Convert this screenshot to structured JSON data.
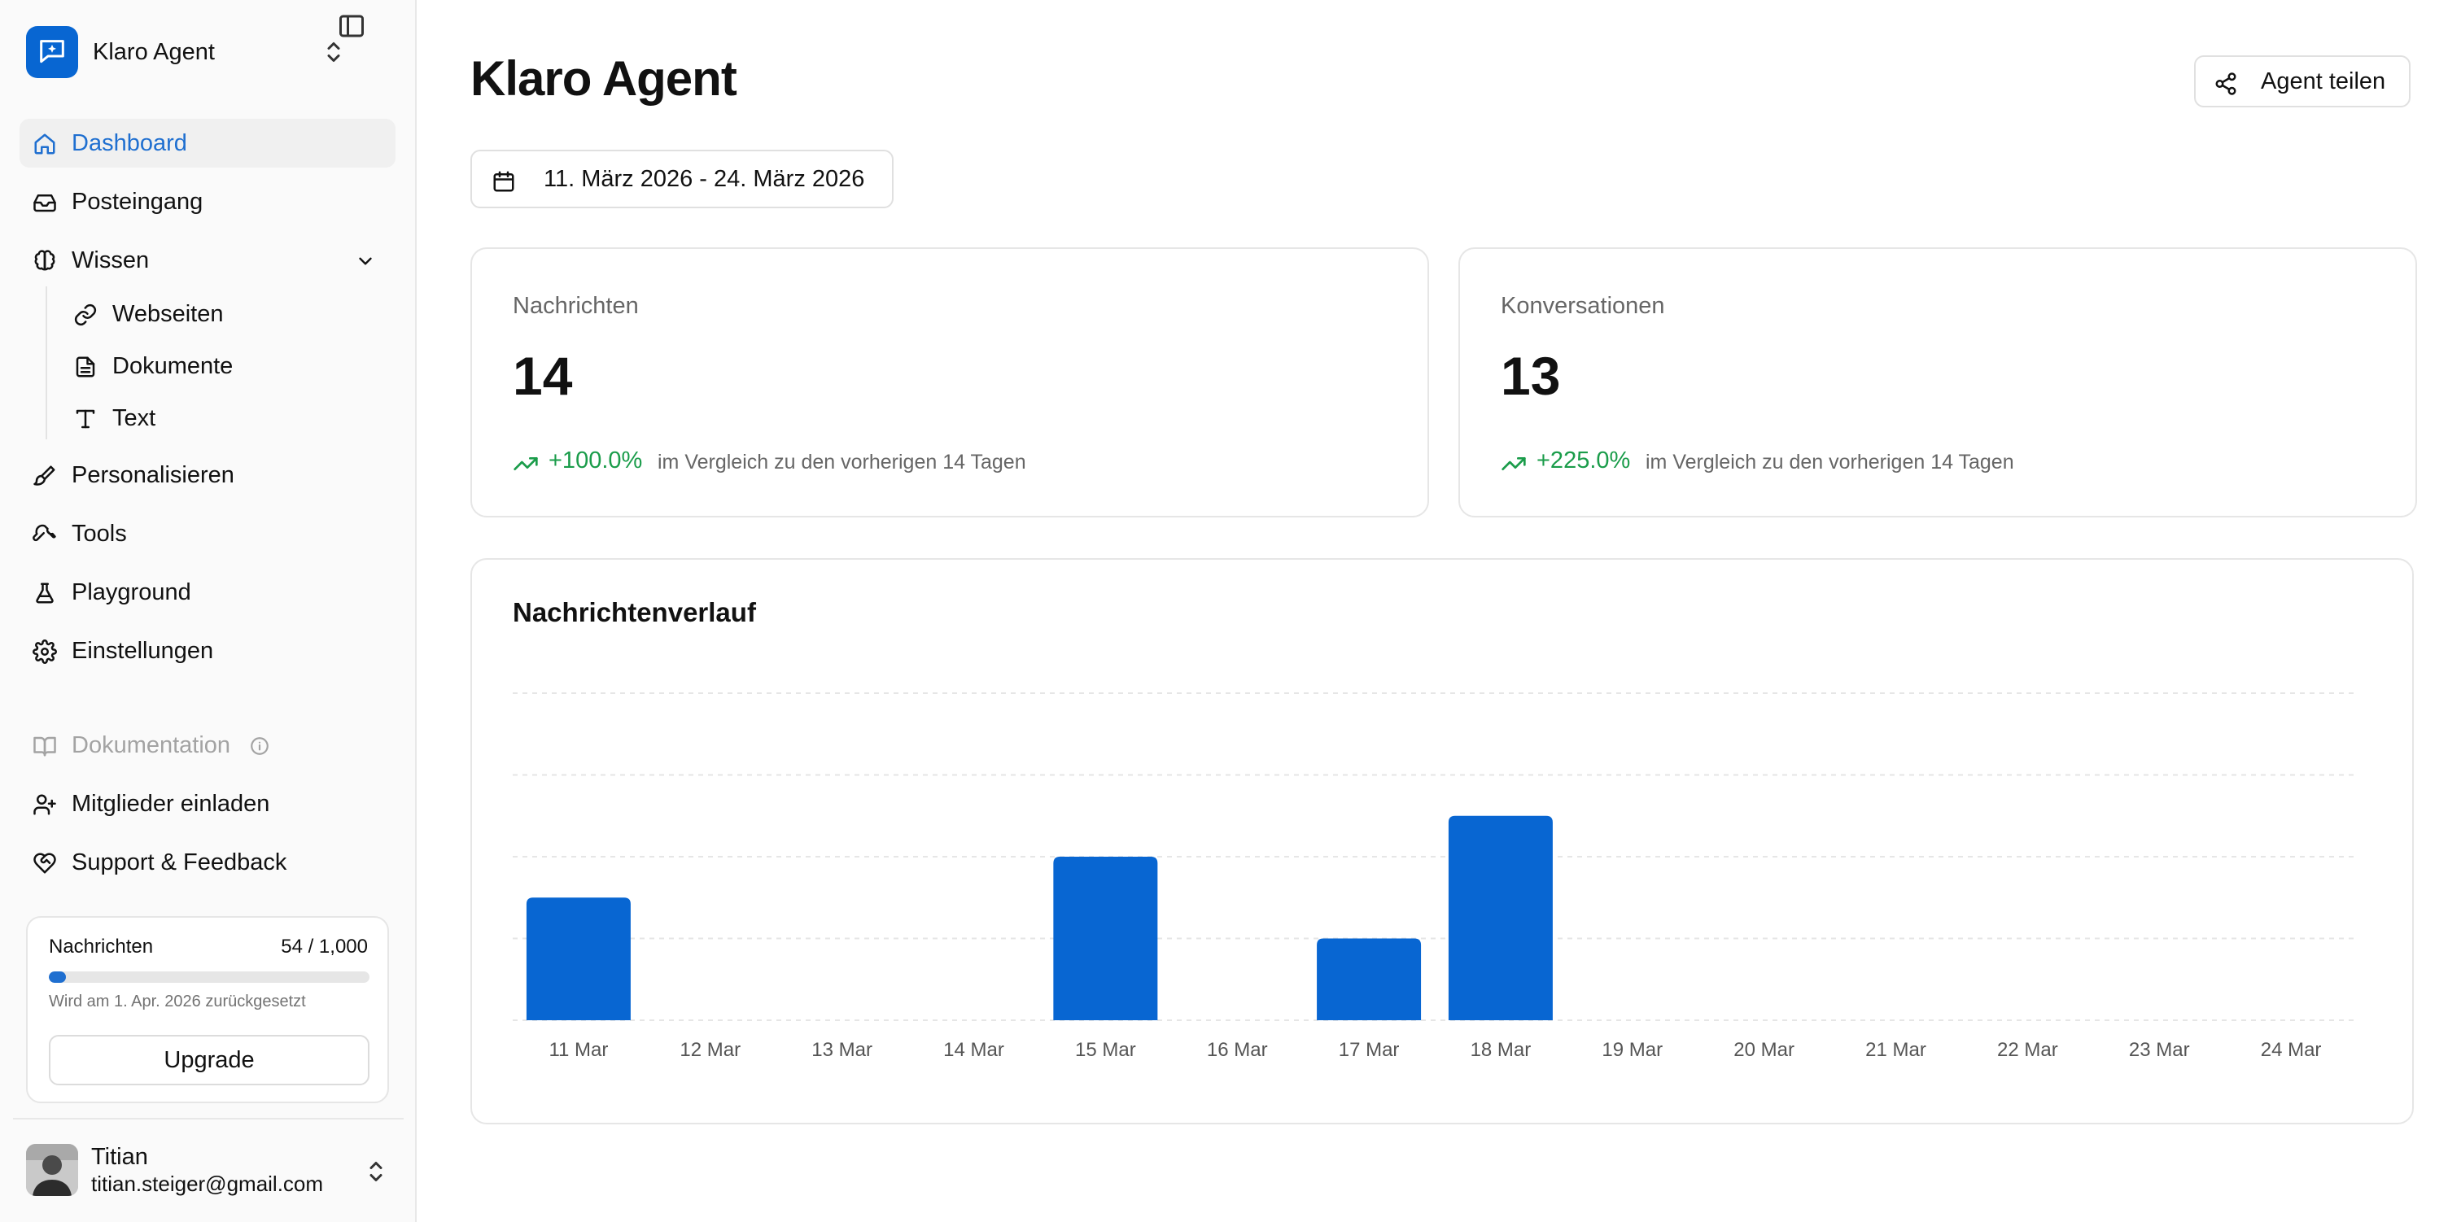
{
  "workspace": {
    "name": "Klaro Agent"
  },
  "sidebar": {
    "nav": [
      {
        "label": "Dashboard",
        "icon": "home-icon",
        "active": true
      },
      {
        "label": "Posteingang",
        "icon": "inbox-icon"
      },
      {
        "label": "Wissen",
        "icon": "brain-icon",
        "expanded": true
      },
      {
        "label": "Personalisieren",
        "icon": "brush-icon"
      },
      {
        "label": "Tools",
        "icon": "wrench-icon"
      },
      {
        "label": "Playground",
        "icon": "flask-icon"
      },
      {
        "label": "Einstellungen",
        "icon": "gear-icon"
      }
    ],
    "wissen_items": [
      {
        "label": "Webseiten",
        "icon": "link-icon"
      },
      {
        "label": "Dokumente",
        "icon": "document-icon"
      },
      {
        "label": "Text",
        "icon": "text-icon"
      }
    ],
    "secondary": [
      {
        "label": "Dokumentation",
        "icon": "book-icon",
        "disabled": true
      },
      {
        "label": "Mitglieder einladen",
        "icon": "user-plus-icon"
      },
      {
        "label": "Support & Feedback",
        "icon": "heart-handshake-icon"
      }
    ],
    "usage": {
      "label": "Nachrichten",
      "count": "54 / 1,000",
      "fraction": 0.054,
      "reset": "Wird am 1. Apr. 2026 zurückgesetzt",
      "upgrade": "Upgrade"
    },
    "user": {
      "name": "Titian",
      "email": "titian.steiger@gmail.com"
    }
  },
  "header": {
    "title": "Klaro Agent",
    "share_label": "Agent teilen",
    "date_range": "11. März 2026 - 24. März 2026"
  },
  "stats": [
    {
      "label": "Nachrichten",
      "value": "14",
      "change": "+100.0%",
      "compare": "im Vergleich zu den vorherigen 14 Tagen"
    },
    {
      "label": "Konversationen",
      "value": "13",
      "change": "+225.0%",
      "compare": "im Vergleich zu den vorherigen 14 Tagen"
    }
  ],
  "colors": {
    "accent": "#1f6fd0",
    "bar": "#0866d2",
    "positive": "#1a9c4a"
  },
  "chart": {
    "title": "Nachrichtenverlauf"
  },
  "chart_data": {
    "type": "bar",
    "title": "Nachrichtenverlauf",
    "categories": [
      "11 Mar",
      "12 Mar",
      "13 Mar",
      "14 Mar",
      "15 Mar",
      "16 Mar",
      "17 Mar",
      "18 Mar",
      "19 Mar",
      "20 Mar",
      "21 Mar",
      "22 Mar",
      "23 Mar",
      "24 Mar"
    ],
    "values": [
      3,
      0,
      0,
      0,
      4,
      0,
      2,
      5,
      0,
      0,
      0,
      0,
      0,
      0
    ],
    "ylim": [
      0,
      8
    ],
    "grid": true,
    "y_tick_labels_shown": false
  }
}
